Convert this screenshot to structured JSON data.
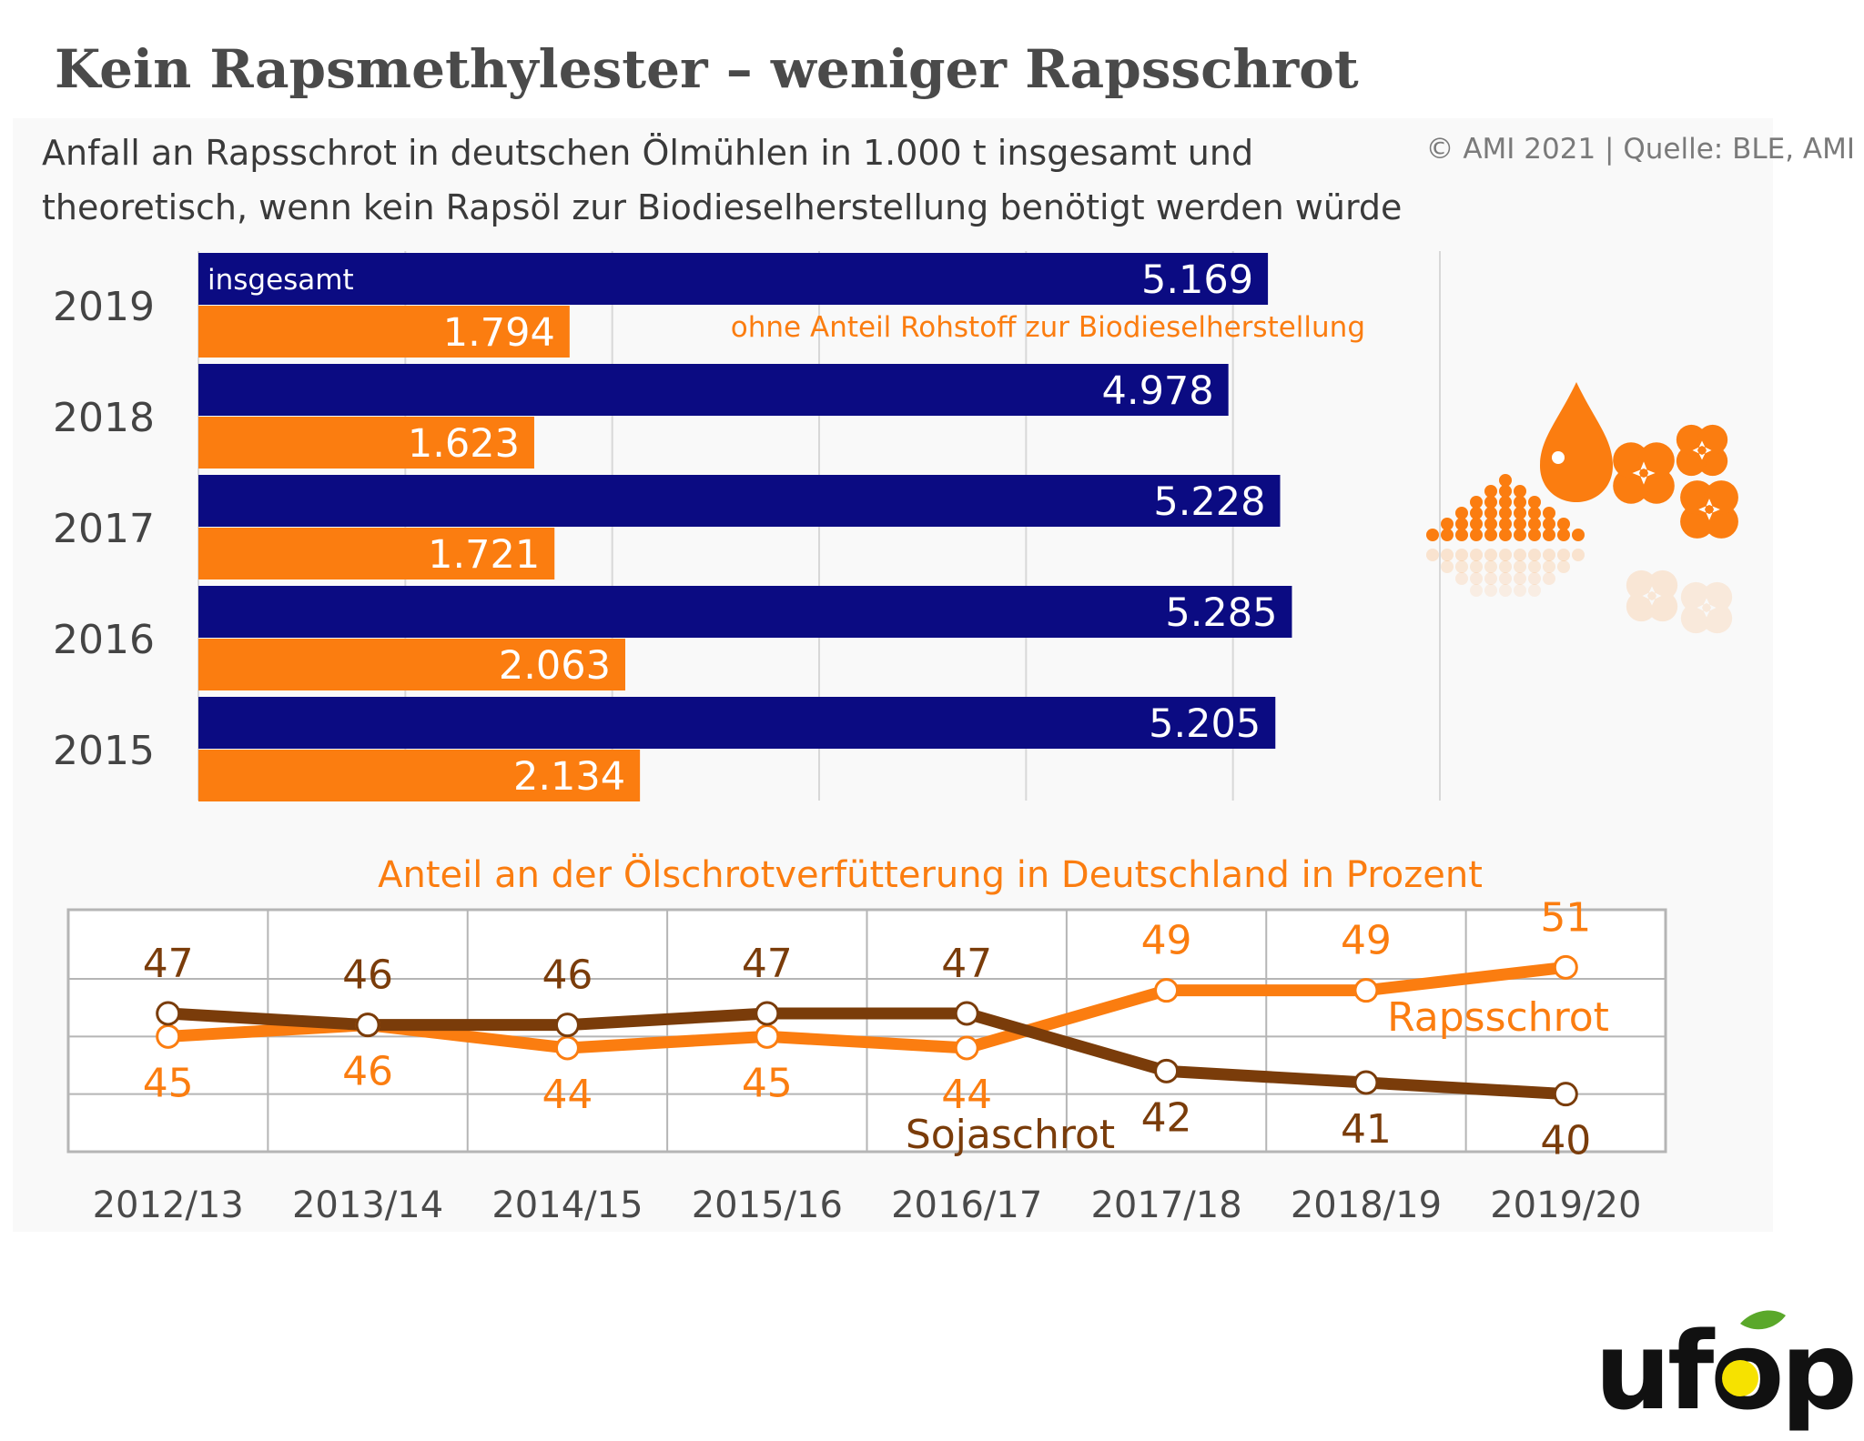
{
  "title": "Kein Rapsmethylester – weniger Rapsschrot",
  "subtitle": "Anfall an Rapsschrot in deutschen Ölmühlen in 1.000 t insgesamt und theoretisch, wenn kein Rapsöl zur Biodieselherstellung benötigt werden würde",
  "source": "© AMI 2021 | Quelle: BLE, AMI",
  "logo_text": "ufop",
  "colors": {
    "navy": "#0b0b82",
    "orange": "#fb7d10",
    "brown": "#7a3c0a",
    "grid": "#d8d8d8"
  },
  "chart_data": [
    {
      "type": "bar",
      "orientation": "horizontal",
      "categories": [
        "2019",
        "2018",
        "2017",
        "2016",
        "2015"
      ],
      "series": [
        {
          "name": "insgesamt",
          "values": [
            5169,
            4978,
            5228,
            5285,
            5205
          ],
          "labels": [
            "5.169",
            "4.978",
            "5.228",
            "5.285",
            "5.205"
          ]
        },
        {
          "name": "ohne Anteil Rohstoff zur Biodieselherstellung",
          "values": [
            1794,
            1623,
            1721,
            2063,
            2134
          ],
          "labels": [
            "1.794",
            "1.623",
            "1.721",
            "2.063",
            "2.134"
          ]
        }
      ],
      "xlim": [
        0,
        6000
      ],
      "grid": true
    },
    {
      "type": "line",
      "title": "Anteil an der Ölschrotverfütterung in Deutschland in Prozent",
      "x": [
        "2012/13",
        "2013/14",
        "2014/15",
        "2015/16",
        "2016/17",
        "2017/18",
        "2018/19",
        "2019/20"
      ],
      "series": [
        {
          "name": "Rapsschrot",
          "values": [
            45,
            46,
            44,
            45,
            44,
            49,
            49,
            51
          ]
        },
        {
          "name": "Sojaschrot",
          "values": [
            47,
            46,
            46,
            47,
            47,
            42,
            41,
            40
          ]
        }
      ],
      "ylim": [
        35,
        56
      ],
      "grid": true
    }
  ]
}
